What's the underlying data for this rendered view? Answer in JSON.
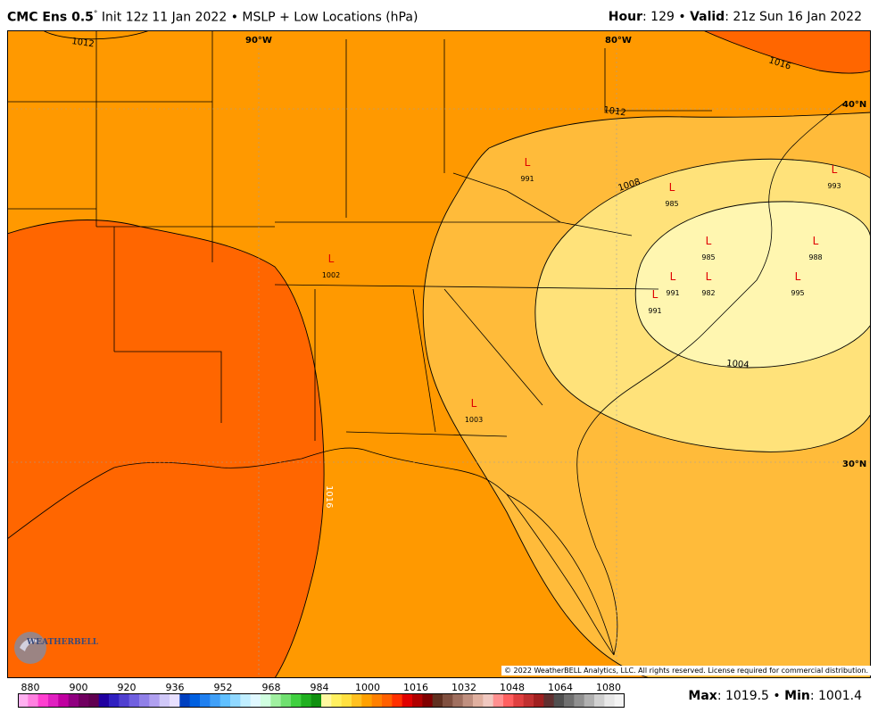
{
  "header": {
    "model": "CMC Ens 0.5",
    "degree_sym": "°",
    "init": "Init 12z 11 Jan 2022",
    "bullet": "•",
    "product": "MSLP + Low Locations (hPa)",
    "hour_label": "Hour",
    "hour_value": ": 129",
    "valid_label": "Valid",
    "valid_value": ": 21z Sun 16 Jan 2022"
  },
  "map": {
    "lon_labels": [
      "90°W",
      "80°W"
    ],
    "lat_labels": [
      "40°N",
      "30°N"
    ],
    "isobars": [
      "1016",
      "1012",
      "1008",
      "1004",
      "1016",
      "1012"
    ],
    "lows": [
      {
        "label": "L",
        "value": "991"
      },
      {
        "label": "L",
        "value": "985"
      },
      {
        "label": "L",
        "value": "993"
      },
      {
        "label": "L",
        "value": "985"
      },
      {
        "label": "L",
        "value": "988"
      },
      {
        "label": "L",
        "value": "991"
      },
      {
        "label": "L",
        "value": "982"
      },
      {
        "label": "L",
        "value": "995"
      },
      {
        "label": "L",
        "value": "991"
      },
      {
        "label": "L",
        "value": "1002"
      },
      {
        "label": "L",
        "value": "1003"
      }
    ],
    "low_label_color": "#e00000",
    "fill_colors": {
      "1016_plus": "#ff6600",
      "1012_1016": "#ff9900",
      "1008_1012": "#ffb938",
      "1004_1008": "#ffe680",
      "below_1004": "#fff6b0"
    }
  },
  "copyright": "© 2022 WeatherBELL Analytics, LLC. All rights reserved. License required for commercial distribution.",
  "logo_text": "WEATHERBELL",
  "scale": {
    "labels": [
      "880",
      "900",
      "920",
      "936",
      "952",
      "968",
      "984",
      "1000",
      "1016",
      "1032",
      "1048",
      "1064",
      "1080"
    ],
    "colors": [
      "#ffb0f0",
      "#ff80e0",
      "#ff40d0",
      "#e020c0",
      "#c000a0",
      "#900080",
      "#700060",
      "#600050",
      "#2000a0",
      "#3020c0",
      "#5040d0",
      "#7060e0",
      "#9080e8",
      "#b0a0f0",
      "#d0c8f8",
      "#e8e0ff",
      "#0040c0",
      "#0060e0",
      "#2080f0",
      "#40a0f8",
      "#60c0ff",
      "#90d8ff",
      "#c0eeff",
      "#e0f8ff",
      "#d0ffe0",
      "#a0f0a0",
      "#70e070",
      "#40d040",
      "#20b020",
      "#109010",
      "#fff8a0",
      "#fff060",
      "#ffe040",
      "#ffc020",
      "#ffa000",
      "#ff8000",
      "#ff6000",
      "#ff3000",
      "#e00000",
      "#b00000",
      "#800000",
      "#603020",
      "#805040",
      "#a07060",
      "#c09080",
      "#e0b0a0",
      "#f0c8c0",
      "#ff9090",
      "#ff6060",
      "#e04040",
      "#c03030",
      "#a02020",
      "#603030",
      "#505050",
      "#707070",
      "#909090",
      "#b0b0b0",
      "#d0d0d0",
      "#e8e8e8",
      "#f4f4f4"
    ]
  },
  "stats": {
    "max_label": "Max",
    "max_value": ": 1019.5",
    "bullet": "•",
    "min_label": "Min",
    "min_value": ": 1001.4"
  }
}
